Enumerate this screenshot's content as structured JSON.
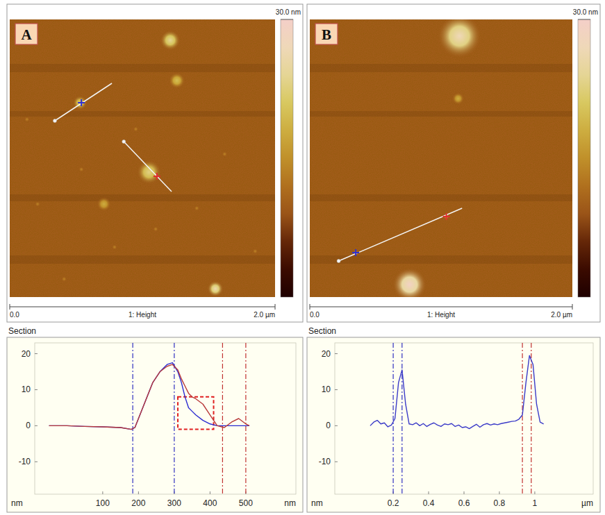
{
  "chart_data": [
    {
      "type": "heatmap",
      "panel": "A",
      "xlabel": "1: Height",
      "xlim": [
        0,
        2
      ],
      "ylim": [
        0,
        2
      ],
      "xticks": [
        {
          "value": 0,
          "label": "0.0"
        },
        {
          "value": 2,
          "label": "2.0 µm"
        }
      ],
      "colorbar": {
        "range": [
          0,
          30
        ],
        "ticks": [
          {
            "value": 30,
            "label": "30.0 nm"
          }
        ]
      },
      "particles": [
        {
          "x": 1.21,
          "y": 0.15,
          "d": 0.1,
          "h": 24
        },
        {
          "x": 1.26,
          "y": 0.44,
          "d": 0.08,
          "h": 20
        },
        {
          "x": 0.53,
          "y": 0.6,
          "d": 0.07,
          "h": 22
        },
        {
          "x": 1.05,
          "y": 1.1,
          "d": 0.12,
          "h": 23
        },
        {
          "x": 0.71,
          "y": 1.33,
          "d": 0.07,
          "h": 18
        },
        {
          "x": 1.55,
          "y": 1.94,
          "d": 0.08,
          "h": 26
        },
        {
          "x": 0.95,
          "y": 0.79,
          "d": 0.025,
          "h": 14
        },
        {
          "x": 1.62,
          "y": 0.97,
          "d": 0.025,
          "h": 14
        },
        {
          "x": 0.21,
          "y": 1.33,
          "d": 0.025,
          "h": 14
        },
        {
          "x": 1.41,
          "y": 1.36,
          "d": 0.025,
          "h": 14
        },
        {
          "x": 0.79,
          "y": 1.64,
          "d": 0.025,
          "h": 14
        },
        {
          "x": 1.85,
          "y": 1.67,
          "d": 0.025,
          "h": 14
        },
        {
          "x": 0.54,
          "y": 1.08,
          "d": 0.025,
          "h": 14
        },
        {
          "x": 0.41,
          "y": 1.87,
          "d": 0.025,
          "h": 14
        },
        {
          "x": 1.1,
          "y": 1.51,
          "d": 0.025,
          "h": 14
        },
        {
          "x": 0.13,
          "y": 0.72,
          "d": 0.025,
          "h": 14
        }
      ],
      "section_lines": [
        {
          "x": [
            0.34,
            0.77
          ],
          "y": [
            0.73,
            0.46
          ],
          "cursor": [
            0.54,
            0.6
          ],
          "color": "#3030d0"
        },
        {
          "x": [
            0.86,
            1.22
          ],
          "y": [
            0.88,
            1.24
          ],
          "cursor": [
            1.11,
            1.13
          ],
          "color": "#e03030"
        }
      ]
    },
    {
      "type": "line",
      "title": "Section",
      "xlabel": "nm",
      "ylabel": "nm",
      "xlim": [
        -90,
        640
      ],
      "ylim": [
        -19,
        23
      ],
      "xticks": [
        100,
        200,
        300,
        400,
        500
      ],
      "yticks": [
        20,
        10,
        0,
        -10
      ],
      "x": [
        -50,
        0,
        50,
        100,
        150,
        180,
        190,
        200,
        220,
        240,
        260,
        280,
        295,
        310,
        320,
        330,
        340,
        350,
        360,
        380,
        400,
        420,
        440,
        460,
        480,
        500,
        510
      ],
      "series": [
        {
          "color": "#2a2ad0",
          "values": [
            0,
            0,
            -0.2,
            -0.3,
            -0.5,
            -1,
            -0.5,
            2,
            7,
            12,
            15,
            17,
            17.5,
            15,
            12,
            8,
            5,
            4,
            3,
            1.5,
            0.5,
            0,
            0,
            0,
            0,
            0,
            0
          ]
        },
        {
          "color": "#b83a3a",
          "values": [
            0,
            0,
            -0.2,
            -0.3,
            -0.5,
            -1,
            -0.5,
            2,
            7,
            12,
            15,
            16.5,
            17,
            15.5,
            13,
            11,
            9,
            8,
            7.5,
            6,
            3,
            0,
            -0.5,
            1,
            2,
            0.5,
            0
          ]
        }
      ],
      "cursors": [
        {
          "x": 184,
          "color": "#3030c0"
        },
        {
          "x": 300,
          "color": "#3030c0"
        },
        {
          "x": 435,
          "color": "#c03030"
        },
        {
          "x": 500,
          "color": "#c03030"
        }
      ],
      "box": {
        "x": [
          310,
          410
        ],
        "y": [
          -1,
          8
        ],
        "color": "#e02020"
      }
    },
    {
      "type": "heatmap",
      "panel": "B",
      "xlabel": "1: Height",
      "xlim": [
        0,
        2
      ],
      "ylim": [
        0,
        2
      ],
      "xticks": [
        {
          "value": 0,
          "label": "0.0"
        },
        {
          "value": 2,
          "label": "2.0 µm"
        }
      ],
      "colorbar": {
        "range": [
          0,
          30
        ],
        "ticks": [
          {
            "value": 30,
            "label": "30.0 nm"
          }
        ]
      },
      "particles": [
        {
          "x": 1.14,
          "y": 0.12,
          "d": 0.22,
          "h": 27
        },
        {
          "x": 1.13,
          "y": 0.57,
          "d": 0.06,
          "h": 18
        },
        {
          "x": 0.76,
          "y": 1.91,
          "d": 0.17,
          "h": 29
        },
        {
          "x": 0.35,
          "y": 1.68,
          "d": 0.03,
          "h": 15
        },
        {
          "x": 1.04,
          "y": 1.42,
          "d": 0.03,
          "h": 17
        }
      ],
      "section_lines": [
        {
          "x": [
            0.22,
            1.16
          ],
          "y": [
            1.74,
            1.36
          ],
          "cursor": [
            0.35,
            1.68
          ],
          "color": "#3030d0"
        },
        {
          "x": [
            1.04
          ],
          "y": [
            1.42
          ],
          "cursor": [
            1.04,
            1.42
          ],
          "color": "#e03030"
        }
      ]
    },
    {
      "type": "line",
      "title": "Section",
      "xlabel": "µm",
      "ylabel": "nm",
      "xlim": [
        -0.13,
        1.33
      ],
      "ylim": [
        -19,
        23
      ],
      "xticks": [
        0.2,
        0.4,
        0.6,
        0.8,
        1
      ],
      "yticks": [
        20,
        10,
        0,
        -10
      ],
      "x": [
        0.07,
        0.09,
        0.11,
        0.13,
        0.15,
        0.17,
        0.19,
        0.21,
        0.23,
        0.25,
        0.27,
        0.29,
        0.31,
        0.33,
        0.35,
        0.37,
        0.39,
        0.41,
        0.43,
        0.45,
        0.47,
        0.49,
        0.51,
        0.53,
        0.55,
        0.57,
        0.59,
        0.61,
        0.63,
        0.65,
        0.67,
        0.69,
        0.71,
        0.73,
        0.75,
        0.77,
        0.79,
        0.81,
        0.83,
        0.85,
        0.87,
        0.89,
        0.91,
        0.93,
        0.95,
        0.97,
        0.99,
        1.01,
        1.03,
        1.05
      ],
      "series": [
        {
          "color": "#3a3ac8",
          "values": [
            0,
            1,
            1.5,
            0.5,
            0.8,
            -0.3,
            0.2,
            2,
            12,
            15.5,
            6,
            0.5,
            0.3,
            0.8,
            0,
            0.6,
            -0.2,
            0.4,
            0.8,
            0.2,
            -0.2,
            0.5,
            0.3,
            0.6,
            -0.2,
            0.2,
            -0.5,
            -0.3,
            -0.8,
            -0.2,
            0.4,
            -0.4,
            0.3,
            0.6,
            0.2,
            0.5,
            0.3,
            0.6,
            0.8,
            1,
            1.2,
            1.3,
            1.8,
            3,
            12,
            19.5,
            17,
            6,
            1,
            0.5
          ]
        }
      ],
      "cursors": [
        {
          "x": 0.2,
          "color": "#3030c0"
        },
        {
          "x": 0.25,
          "color": "#3030c0"
        },
        {
          "x": 0.93,
          "color": "#c03030"
        },
        {
          "x": 0.98,
          "color": "#c03030"
        }
      ]
    }
  ]
}
